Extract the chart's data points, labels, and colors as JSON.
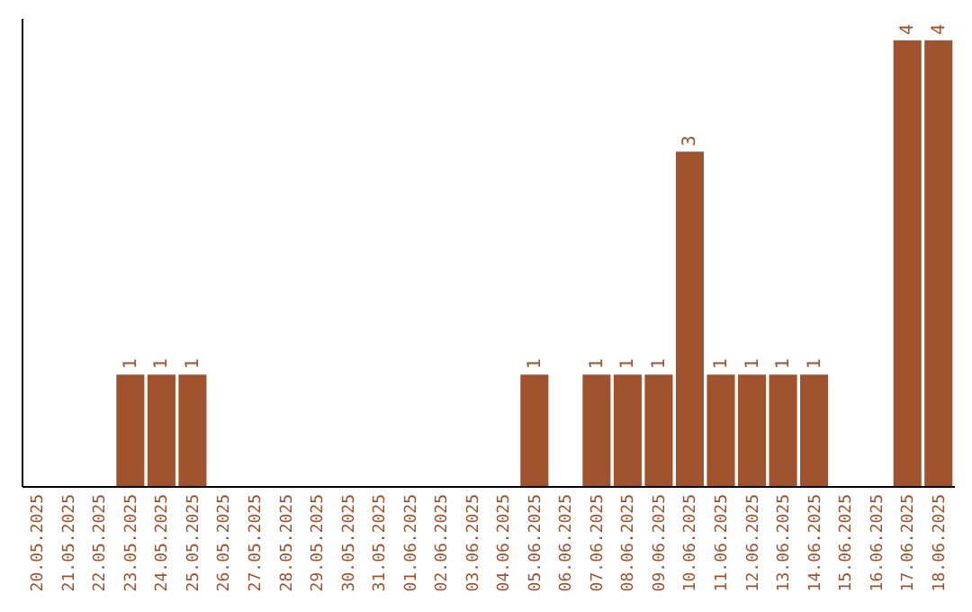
{
  "chart_data": {
    "type": "bar",
    "categories": [
      "20.05.2025",
      "21.05.2025",
      "22.05.2025",
      "23.05.2025",
      "24.05.2025",
      "25.05.2025",
      "26.05.2025",
      "27.05.2025",
      "28.05.2025",
      "29.05.2025",
      "30.05.2025",
      "31.05.2025",
      "01.06.2025",
      "02.06.2025",
      "03.06.2025",
      "04.06.2025",
      "05.06.2025",
      "06.06.2025",
      "07.06.2025",
      "08.06.2025",
      "09.06.2025",
      "10.06.2025",
      "11.06.2025",
      "12.06.2025",
      "13.06.2025",
      "14.06.2025",
      "15.06.2025",
      "16.06.2025",
      "17.06.2025",
      "18.06.2025"
    ],
    "values": [
      0,
      0,
      0,
      1,
      1,
      1,
      0,
      0,
      0,
      0,
      0,
      0,
      0,
      0,
      0,
      0,
      1,
      0,
      1,
      1,
      1,
      3,
      1,
      1,
      1,
      1,
      0,
      0,
      4,
      4
    ],
    "value_labels": [
      null,
      null,
      null,
      "1",
      "1",
      "1",
      null,
      null,
      null,
      null,
      null,
      null,
      null,
      null,
      null,
      null,
      "1",
      null,
      "1",
      "1",
      "1",
      "3",
      "1",
      "1",
      "1",
      "1",
      null,
      null,
      "4",
      "4"
    ],
    "color": "#a0522d",
    "ylim": [
      0,
      4.2
    ],
    "tick_labels": "x",
    "grid": false
  }
}
